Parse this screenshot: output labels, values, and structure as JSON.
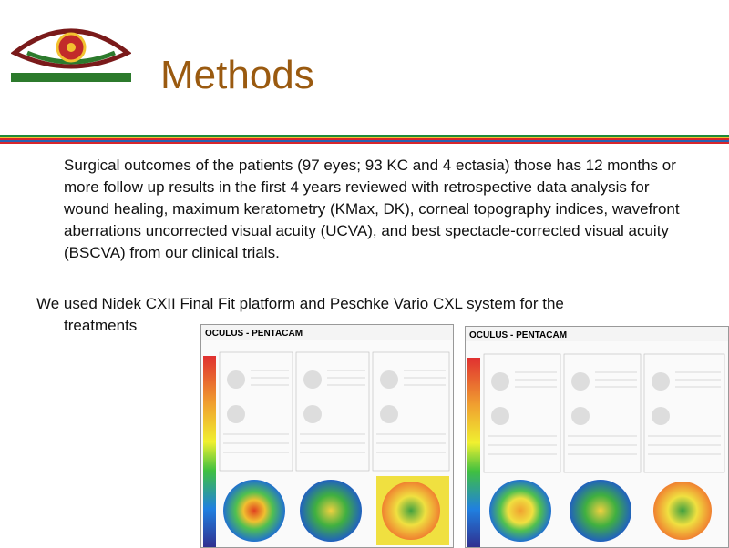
{
  "slide": {
    "title": "Methods",
    "paragraph1": "Surgical outcomes of the patients (97 eyes; 93 KC and 4 ectasia) those has 12 months or more follow up results in the first 4 years reviewed with retrospective data analysis for wound healing, maximum keratometry (KMax, DK), corneal topography indices, wavefront aberrations uncorrected visual acuity (UCVA), and best spectacle-corrected visual acuity (BSCVA) from our clinical trials.",
    "paragraph2_line1": "We used Nidek CXII Final Fit platform and Peschke Vario CXL system for the",
    "paragraph2_line2": "treatments"
  },
  "panels": [
    {
      "header": "OCULUS - PENTACAM"
    },
    {
      "header": "OCULUS - PENTACAM"
    }
  ],
  "colors": {
    "title": "#9a5a10",
    "stripes": [
      "#1f8a3a",
      "#f2c230",
      "#d8262b",
      "#2a62b0",
      "#d8262b"
    ]
  }
}
